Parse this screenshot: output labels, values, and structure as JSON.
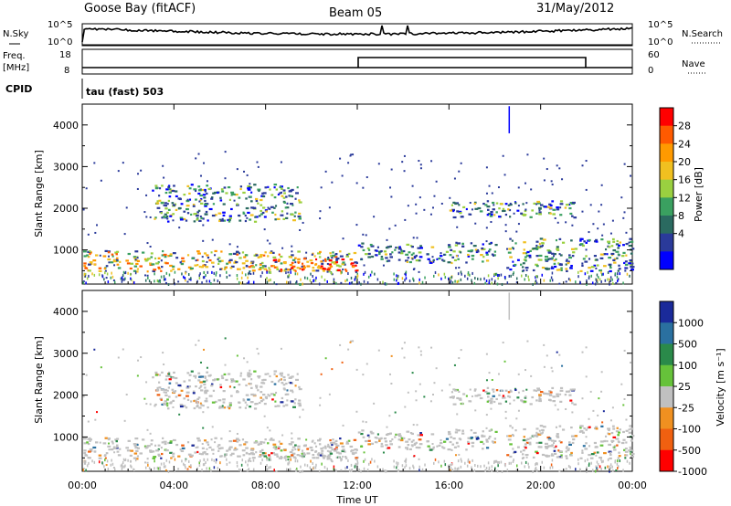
{
  "header": {
    "station": "Goose Bay (fitACF)",
    "beam": "Beam 05",
    "date": "31/May/2012"
  },
  "top_panels": {
    "nsky_label": "N.Sky",
    "nsky_ticks": [
      "10^5",
      "10^0"
    ],
    "nsearch_label": "N.Search",
    "nsearch_ticks": [
      "10^5",
      "10^0"
    ],
    "freq_label": "Freq.",
    "freq_unit": "[MHz]",
    "freq_ticks": [
      "18",
      "8"
    ],
    "nave_label": "Nave",
    "nave_ticks": [
      "60",
      "0"
    ],
    "cpid_label": "CPID",
    "cpid_value": "tau (fast) 503"
  },
  "axes": {
    "xlabel": "Time UT",
    "x_ticks": [
      "00:00",
      "04:00",
      "08:00",
      "12:00",
      "16:00",
      "20:00",
      "00:00"
    ],
    "ylabel": "Slant Range [km]",
    "y_ticks": [
      "4000",
      "3000",
      "2000",
      "1000"
    ]
  },
  "colorbars": {
    "power": {
      "label": "Power [dB]",
      "ticks": [
        "28",
        "24",
        "20",
        "16",
        "12",
        "8",
        "4"
      ],
      "colors": [
        "#ff0000",
        "#ff5a00",
        "#ff9a00",
        "#f0c020",
        "#9ad040",
        "#3aa060",
        "#2a6a60",
        "#2a3a9a",
        "#0000ff"
      ]
    },
    "velocity": {
      "label": "Velocity [m s⁻¹]",
      "ticks": [
        "1000",
        "500",
        "100",
        "25",
        "-25",
        "-100",
        "-500",
        "-1000"
      ],
      "colors": [
        "#1a2a9a",
        "#2a70a0",
        "#2a8a4a",
        "#66c23a",
        "#c0c0c0",
        "#f09020",
        "#f06010",
        "#ff0000"
      ]
    }
  },
  "chart_data": [
    {
      "type": "heatmap",
      "title": "Power",
      "x_range_hours": [
        0,
        24
      ],
      "ylim": [
        180,
        4500
      ],
      "scatter_bands": [
        {
          "t0": 0.0,
          "t1": 12.0,
          "r0": 500,
          "r1": 1000,
          "level": "high"
        },
        {
          "t0": 8.0,
          "t1": 12.0,
          "r0": 500,
          "r1": 800,
          "level": "very high"
        },
        {
          "t0": 3.0,
          "t1": 9.5,
          "r0": 1700,
          "r1": 2600,
          "level": "medium"
        },
        {
          "t0": 12.0,
          "t1": 18.0,
          "r0": 700,
          "r1": 1200,
          "level": "medium"
        },
        {
          "t0": 16.0,
          "t1": 21.5,
          "r0": 1800,
          "r1": 2200,
          "level": "medium"
        },
        {
          "t0": 18.5,
          "t1": 24.0,
          "r0": 500,
          "r1": 1300,
          "level": "medium"
        }
      ]
    },
    {
      "type": "heatmap",
      "title": "Velocity",
      "x_range_hours": [
        0,
        24
      ],
      "ylim": [
        180,
        4500
      ],
      "note_bands": "mostly ground scatter (grey) with green/orange velocity patches"
    }
  ]
}
